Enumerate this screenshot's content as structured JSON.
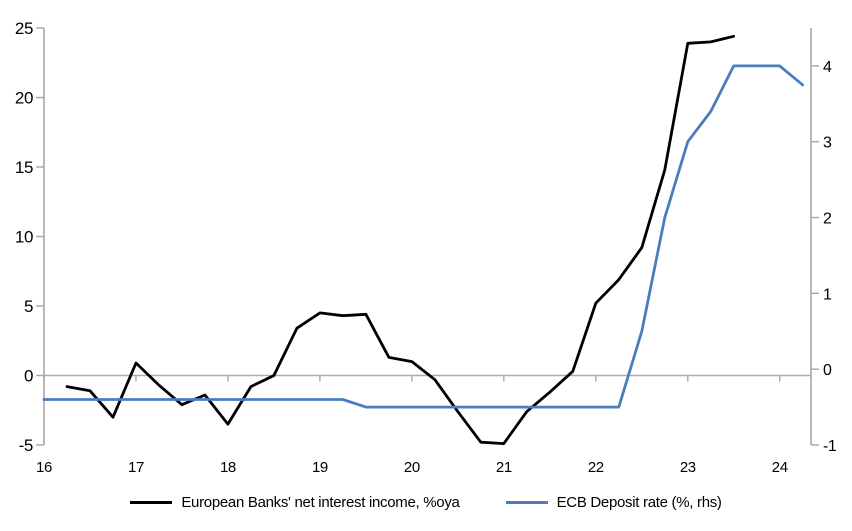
{
  "chart_data": {
    "type": "line",
    "title": "",
    "x_unit": "year (quarterly points; e.g. 16.25 = 2016Q2)",
    "x_axis": {
      "range": [
        16,
        24.34
      ],
      "ticks": [
        16,
        17,
        18,
        19,
        20,
        21,
        22,
        23,
        24
      ],
      "tick_labels": [
        "16",
        "17",
        "18",
        "19",
        "20",
        "21",
        "22",
        "23",
        "24"
      ]
    },
    "left_axis": {
      "range": [
        -5,
        25
      ],
      "ticks": [
        -5,
        0,
        5,
        10,
        15,
        20,
        25
      ],
      "tick_labels": [
        "-5",
        "0",
        "5",
        "10",
        "15",
        "20",
        "25"
      ]
    },
    "right_axis": {
      "range": [
        -1,
        4.5
      ],
      "ticks": [
        -1,
        0,
        1,
        2,
        3,
        4
      ],
      "tick_labels": [
        "-1",
        "0",
        "1",
        "2",
        "3",
        "4"
      ]
    },
    "grid": "off",
    "legend_position": "bottom-center",
    "axis_color": "#A6A6A6",
    "series": [
      {
        "name": "European Banks' net interest income, %oya",
        "axis": "left",
        "color": "#000000",
        "stroke_width": 2.8,
        "x_start": 16.25,
        "x_step": 0.25,
        "values": [
          -0.8,
          -1.1,
          -3.0,
          0.9,
          -0.7,
          -2.1,
          -1.4,
          -3.5,
          -0.8,
          0.0,
          3.4,
          4.5,
          4.3,
          4.4,
          1.3,
          1.0,
          -0.3,
          -2.6,
          -4.8,
          -4.9,
          -2.6,
          -1.2,
          0.3,
          5.2,
          6.9,
          9.2,
          14.8,
          23.9,
          24.0,
          24.4
        ]
      },
      {
        "name": "ECB Deposit rate (%, rhs)",
        "axis": "right",
        "color": "#4A7EBB",
        "stroke_width": 2.8,
        "x_start": 16.0,
        "x_step": 0.25,
        "values": [
          -0.4,
          -0.4,
          -0.4,
          -0.4,
          -0.4,
          -0.4,
          -0.4,
          -0.4,
          -0.4,
          -0.4,
          -0.4,
          -0.4,
          -0.4,
          -0.4,
          -0.5,
          -0.5,
          -0.5,
          -0.5,
          -0.5,
          -0.5,
          -0.5,
          -0.5,
          -0.5,
          -0.5,
          -0.5,
          -0.5,
          0.5,
          2.0,
          3.0,
          3.4,
          4.0,
          4.0,
          4.0,
          3.75
        ]
      }
    ]
  },
  "legend": {
    "items": [
      {
        "label": "European Banks' net interest income, %oya",
        "color": "#000000"
      },
      {
        "label": "ECB Deposit rate (%, rhs)",
        "color": "#4A7EBB"
      }
    ]
  }
}
